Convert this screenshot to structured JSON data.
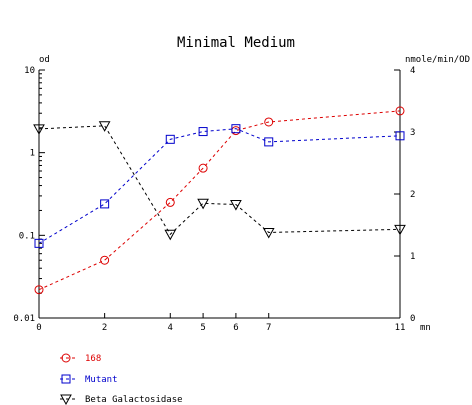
{
  "chart_data": {
    "type": "line",
    "title": "Minimal Medium",
    "left_axis_label": "od",
    "right_axis_label": "nmole/min/OD",
    "x_axis_label": "mn",
    "x_ticks": [
      0,
      2,
      4,
      5,
      6,
      7,
      11
    ],
    "x_range": [
      0,
      11
    ],
    "left_scale": "log",
    "left_range": [
      0.01,
      10
    ],
    "left_ticks": [
      {
        "value": 10,
        "label": "10"
      },
      {
        "value": 1,
        "label": "1"
      },
      {
        "value": 0.1,
        "label": "0.1"
      },
      {
        "value": 0.01,
        "label": "0.01"
      }
    ],
    "right_range": [
      0,
      4
    ],
    "right_ticks": [
      0,
      1,
      2,
      3,
      4
    ],
    "grid": false,
    "legend_position": "bottom-left",
    "series": [
      {
        "name": "168",
        "axis": "left",
        "marker": "circle",
        "color": "#dd0000",
        "x": [
          0,
          2,
          4,
          5,
          6,
          7,
          11
        ],
        "y": [
          0.022,
          0.05,
          0.25,
          0.65,
          1.85,
          2.35,
          3.2
        ]
      },
      {
        "name": "Mutant",
        "axis": "left",
        "marker": "square",
        "color": "#0000cc",
        "x": [
          0,
          2,
          4,
          5,
          6,
          7,
          11
        ],
        "y": [
          0.08,
          0.24,
          1.45,
          1.8,
          1.95,
          1.35,
          1.6
        ]
      },
      {
        "name": "Beta Galactosidase",
        "axis": "right",
        "marker": "triangle-down",
        "color": "#000000",
        "x": [
          0,
          2,
          4,
          5,
          6,
          7,
          11
        ],
        "y": [
          3.05,
          3.1,
          1.35,
          1.85,
          1.83,
          1.38,
          1.43
        ]
      }
    ]
  }
}
